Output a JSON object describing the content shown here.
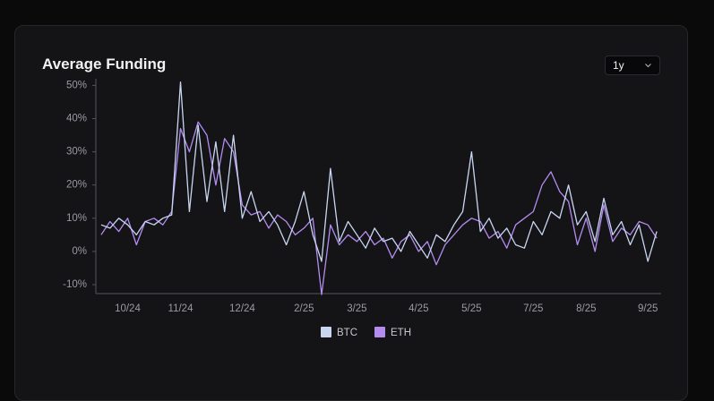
{
  "range_selector": "1y",
  "chart_data": {
    "type": "line",
    "title": "Average Funding",
    "categories": [
      null,
      null,
      null,
      "10/24",
      null,
      null,
      null,
      null,
      null,
      "11/24",
      null,
      null,
      null,
      null,
      null,
      null,
      "12/24",
      null,
      null,
      null,
      null,
      null,
      null,
      "2/25",
      null,
      null,
      null,
      null,
      null,
      "3/25",
      null,
      null,
      null,
      null,
      null,
      null,
      "4/25",
      null,
      null,
      null,
      null,
      null,
      "5/25",
      null,
      null,
      null,
      null,
      null,
      null,
      "7/25",
      null,
      null,
      null,
      null,
      null,
      "8/25",
      null,
      null,
      null,
      null,
      null,
      null,
      "9/25",
      null
    ],
    "series": [
      {
        "name": "BTC",
        "color": "#c9d6f2",
        "values": [
          8,
          7,
          10,
          8,
          5,
          9,
          8,
          10,
          11,
          51,
          12,
          38,
          15,
          33,
          12,
          35,
          10,
          18,
          9,
          12,
          8,
          2,
          9,
          18,
          5,
          -3,
          25,
          3,
          9,
          5,
          1,
          7,
          3,
          4,
          0,
          6,
          2,
          -2,
          5,
          3,
          8,
          12,
          30,
          6,
          10,
          4,
          7,
          2,
          1,
          9,
          5,
          12,
          10,
          20,
          8,
          12,
          3,
          16,
          5,
          9,
          2,
          8,
          -3,
          6
        ]
      },
      {
        "name": "ETH",
        "color": "#b48cf0",
        "values": [
          5,
          9,
          6,
          10,
          2,
          9,
          10,
          8,
          12,
          37,
          30,
          39,
          35,
          20,
          34,
          30,
          14,
          11,
          12,
          7,
          11,
          9,
          5,
          7,
          10,
          -13,
          8,
          2,
          5,
          3,
          6,
          2,
          4,
          -2,
          3,
          5,
          0,
          3,
          -4,
          2,
          5,
          8,
          10,
          9,
          4,
          6,
          1,
          8,
          10,
          12,
          20,
          24,
          18,
          15,
          2,
          10,
          0,
          14,
          3,
          7,
          5,
          9,
          8,
          4
        ]
      }
    ],
    "ylim": [
      -12.7,
      52
    ],
    "yticks": [
      {
        "value": -10,
        "label": "-10%"
      },
      {
        "value": 0,
        "label": "0%"
      },
      {
        "value": 10,
        "label": "10%"
      },
      {
        "value": 20,
        "label": "20%"
      },
      {
        "value": 30,
        "label": "30%"
      },
      {
        "value": 40,
        "label": "40%"
      },
      {
        "value": 50,
        "label": "50%"
      }
    ],
    "grid": false
  }
}
